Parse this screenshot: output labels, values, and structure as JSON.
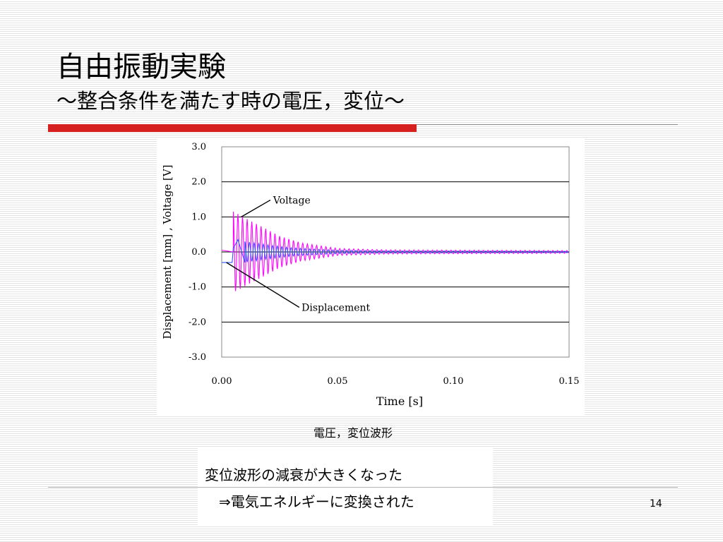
{
  "slide": {
    "title": "自由振動実験",
    "subtitle": "～整合条件を満たす時の電圧，変位～",
    "caption": "電圧，変位波形",
    "note_line1": "変位波形の減衰が大きくなった",
    "note_line2": "⇒電気エネルギーに変換された",
    "page_number": "14"
  },
  "colors": {
    "accent_red": "#d6201f",
    "voltage": "#ff00ff",
    "displacement": "#2b5cff"
  },
  "chart_data": {
    "type": "line",
    "title": "",
    "xlabel": "Time [s]",
    "ylabel": "Displacement [mm] , Voltage [V]",
    "xlim": [
      0.0,
      0.15
    ],
    "ylim": [
      -3.0,
      3.0
    ],
    "xticks": [
      "0.00",
      "0.05",
      "0.10",
      "0.15"
    ],
    "yticks": [
      "3.0",
      "2.0",
      "1.0",
      "0.0",
      "-1.0",
      "-2.0",
      "-3.0"
    ],
    "grid": "horizontal",
    "annotations": [
      {
        "text": "Voltage",
        "x": 0.0078,
        "y": 1.0
      },
      {
        "text": "Displacement",
        "x": 0.002,
        "y": -0.3
      }
    ],
    "series": [
      {
        "name": "Voltage",
        "pattern": "damped-oscillation",
        "x": [
          0.0,
          0.005,
          0.0065,
          0.0075,
          0.0085,
          0.0095,
          0.011,
          0.013,
          0.015,
          0.018,
          0.021,
          0.025,
          0.03,
          0.035,
          0.04,
          0.05,
          0.06,
          0.08,
          0.1,
          0.12,
          0.15
        ],
        "y": [
          0.05,
          0.0,
          1.05,
          -1.3,
          0.95,
          -1.0,
          0.85,
          -0.9,
          0.65,
          -0.7,
          0.5,
          -0.45,
          0.3,
          -0.2,
          0.15,
          -0.08,
          0.05,
          0.03,
          0.02,
          0.02,
          0.02
        ],
        "offset_after": 0.005,
        "envelope": [
          [
            0.005,
            1.15
          ],
          [
            0.008,
            1.05
          ],
          [
            0.012,
            0.9
          ],
          [
            0.018,
            0.7
          ],
          [
            0.025,
            0.45
          ],
          [
            0.035,
            0.25
          ],
          [
            0.05,
            0.1
          ],
          [
            0.07,
            0.06
          ],
          [
            0.15,
            0.04
          ]
        ],
        "period": 0.002
      },
      {
        "name": "Displacement",
        "pattern": "damped-oscillation",
        "x": [
          0.0,
          0.0045,
          0.005,
          0.007,
          0.01,
          0.015,
          0.02,
          0.025,
          0.03,
          0.04,
          0.05,
          0.07,
          0.1,
          0.15
        ],
        "y": [
          -0.3,
          -0.3,
          0.1,
          0.35,
          -0.3,
          0.25,
          -0.2,
          0.15,
          -0.1,
          0.07,
          -0.05,
          0.03,
          0.02,
          0.02
        ],
        "offset_after": 0.01,
        "envelope": [
          [
            0.005,
            0.33
          ],
          [
            0.01,
            0.3
          ],
          [
            0.015,
            0.25
          ],
          [
            0.02,
            0.2
          ],
          [
            0.03,
            0.12
          ],
          [
            0.04,
            0.08
          ],
          [
            0.05,
            0.05
          ],
          [
            0.07,
            0.03
          ],
          [
            0.15,
            0.02
          ]
        ],
        "period": 0.002
      }
    ]
  }
}
